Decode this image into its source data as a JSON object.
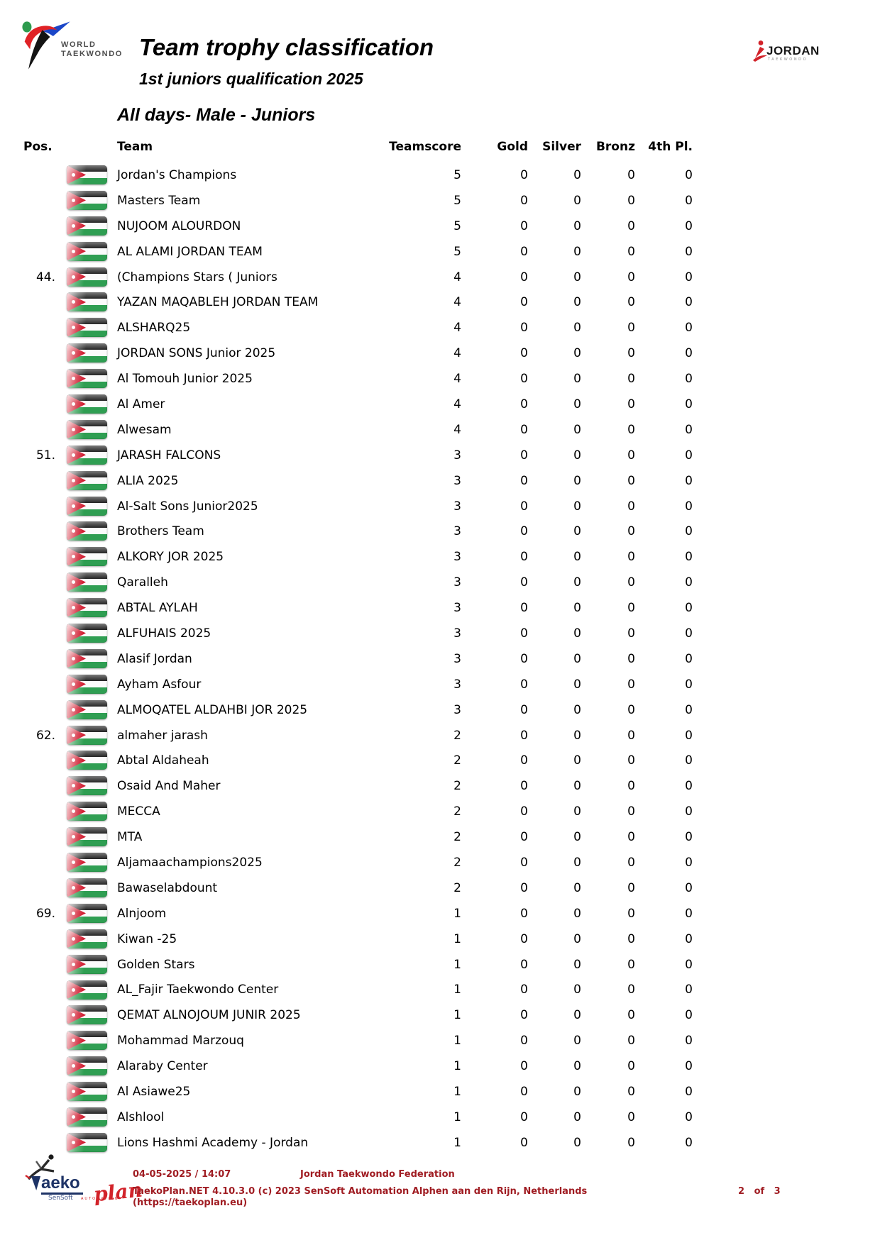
{
  "header": {
    "org_line1": "WORLD",
    "org_line2": "TAEKWONDO",
    "title": "Team trophy classification",
    "subtitle": "1st juniors qualification 2025",
    "right_logo_name": "JORDAN",
    "right_logo_sub": "TAEKWONDO"
  },
  "section_title": "All days- Male - Juniors",
  "table": {
    "columns": {
      "pos": "Pos.",
      "team": "Team",
      "score": "Teamscore",
      "gold": "Gold",
      "silver": "Silver",
      "bronze": "Bronz",
      "fourth": "4th Pl."
    },
    "flag_icon": "jordan-flag-icon",
    "rows": [
      {
        "pos": "",
        "team": "Jordan's  Champions",
        "score": "5",
        "gold": "0",
        "silver": "0",
        "bronze": "0",
        "fourth": "0"
      },
      {
        "pos": "",
        "team": "Masters Team",
        "score": "5",
        "gold": "0",
        "silver": "0",
        "bronze": "0",
        "fourth": "0"
      },
      {
        "pos": "",
        "team": "NUJOOM ALOURDON",
        "score": "5",
        "gold": "0",
        "silver": "0",
        "bronze": "0",
        "fourth": "0"
      },
      {
        "pos": "",
        "team": "AL ALAMI JORDAN TEAM",
        "score": "5",
        "gold": "0",
        "silver": "0",
        "bronze": "0",
        "fourth": "0"
      },
      {
        "pos": "44.",
        "team": "(Champions Stars ( Juniors",
        "score": "4",
        "gold": "0",
        "silver": "0",
        "bronze": "0",
        "fourth": "0"
      },
      {
        "pos": "",
        "team": "YAZAN MAQABLEH JORDAN TEAM",
        "score": "4",
        "gold": "0",
        "silver": "0",
        "bronze": "0",
        "fourth": "0"
      },
      {
        "pos": "",
        "team": "ALSHARQ25",
        "score": "4",
        "gold": "0",
        "silver": "0",
        "bronze": "0",
        "fourth": "0"
      },
      {
        "pos": "",
        "team": "JORDAN SONS Junior 2025",
        "score": "4",
        "gold": "0",
        "silver": "0",
        "bronze": "0",
        "fourth": "0"
      },
      {
        "pos": "",
        "team": "Al Tomouh  Junior 2025",
        "score": "4",
        "gold": "0",
        "silver": "0",
        "bronze": "0",
        "fourth": "0"
      },
      {
        "pos": "",
        "team": "Al Amer",
        "score": "4",
        "gold": "0",
        "silver": "0",
        "bronze": "0",
        "fourth": "0"
      },
      {
        "pos": "",
        "team": "Alwesam",
        "score": "4",
        "gold": "0",
        "silver": "0",
        "bronze": "0",
        "fourth": "0"
      },
      {
        "pos": "51.",
        "team": "JARASH FALCONS",
        "score": "3",
        "gold": "0",
        "silver": "0",
        "bronze": "0",
        "fourth": "0"
      },
      {
        "pos": "",
        "team": "ALIA 2025",
        "score": "3",
        "gold": "0",
        "silver": "0",
        "bronze": "0",
        "fourth": "0"
      },
      {
        "pos": "",
        "team": "Al-Salt Sons Junior2025",
        "score": "3",
        "gold": "0",
        "silver": "0",
        "bronze": "0",
        "fourth": "0"
      },
      {
        "pos": "",
        "team": "Brothers Team",
        "score": "3",
        "gold": "0",
        "silver": "0",
        "bronze": "0",
        "fourth": "0"
      },
      {
        "pos": "",
        "team": "ALKORY JOR 2025",
        "score": "3",
        "gold": "0",
        "silver": "0",
        "bronze": "0",
        "fourth": "0"
      },
      {
        "pos": "",
        "team": "Qaralleh",
        "score": "3",
        "gold": "0",
        "silver": "0",
        "bronze": "0",
        "fourth": "0"
      },
      {
        "pos": "",
        "team": "ABTAL AYLAH",
        "score": "3",
        "gold": "0",
        "silver": "0",
        "bronze": "0",
        "fourth": "0"
      },
      {
        "pos": "",
        "team": "ALFUHAIS 2025",
        "score": "3",
        "gold": "0",
        "silver": "0",
        "bronze": "0",
        "fourth": "0"
      },
      {
        "pos": "",
        "team": "Alasif Jordan",
        "score": "3",
        "gold": "0",
        "silver": "0",
        "bronze": "0",
        "fourth": "0"
      },
      {
        "pos": "",
        "team": "Ayham Asfour",
        "score": "3",
        "gold": "0",
        "silver": "0",
        "bronze": "0",
        "fourth": "0"
      },
      {
        "pos": "",
        "team": "ALMOQATEL ALDAHBI JOR 2025",
        "score": "3",
        "gold": "0",
        "silver": "0",
        "bronze": "0",
        "fourth": "0"
      },
      {
        "pos": "62.",
        "team": "almaher jarash",
        "score": "2",
        "gold": "0",
        "silver": "0",
        "bronze": "0",
        "fourth": "0"
      },
      {
        "pos": "",
        "team": "Abtal Aldaheah",
        "score": "2",
        "gold": "0",
        "silver": "0",
        "bronze": "0",
        "fourth": "0"
      },
      {
        "pos": "",
        "team": "Osaid And Maher",
        "score": "2",
        "gold": "0",
        "silver": "0",
        "bronze": "0",
        "fourth": "0"
      },
      {
        "pos": "",
        "team": "MECCA",
        "score": "2",
        "gold": "0",
        "silver": "0",
        "bronze": "0",
        "fourth": "0"
      },
      {
        "pos": "",
        "team": "MTA",
        "score": "2",
        "gold": "0",
        "silver": "0",
        "bronze": "0",
        "fourth": "0"
      },
      {
        "pos": "",
        "team": "Aljamaachampions2025",
        "score": "2",
        "gold": "0",
        "silver": "0",
        "bronze": "0",
        "fourth": "0"
      },
      {
        "pos": "",
        "team": "Bawaselabdount",
        "score": "2",
        "gold": "0",
        "silver": "0",
        "bronze": "0",
        "fourth": "0"
      },
      {
        "pos": "69.",
        "team": "Alnjoom",
        "score": "1",
        "gold": "0",
        "silver": "0",
        "bronze": "0",
        "fourth": "0"
      },
      {
        "pos": "",
        "team": "Kiwan  -25",
        "score": "1",
        "gold": "0",
        "silver": "0",
        "bronze": "0",
        "fourth": "0"
      },
      {
        "pos": "",
        "team": "Golden Stars",
        "score": "1",
        "gold": "0",
        "silver": "0",
        "bronze": "0",
        "fourth": "0"
      },
      {
        "pos": "",
        "team": "AL_Fajir Taekwondo Center",
        "score": "1",
        "gold": "0",
        "silver": "0",
        "bronze": "0",
        "fourth": "0"
      },
      {
        "pos": "",
        "team": "QEMAT ALNOJOUM JUNIR 2025",
        "score": "1",
        "gold": "0",
        "silver": "0",
        "bronze": "0",
        "fourth": "0"
      },
      {
        "pos": "",
        "team": "Mohammad Marzouq",
        "score": "1",
        "gold": "0",
        "silver": "0",
        "bronze": "0",
        "fourth": "0"
      },
      {
        "pos": "",
        "team": "Alaraby Center",
        "score": "1",
        "gold": "0",
        "silver": "0",
        "bronze": "0",
        "fourth": "0"
      },
      {
        "pos": "",
        "team": "Al Asiawe25",
        "score": "1",
        "gold": "0",
        "silver": "0",
        "bronze": "0",
        "fourth": "0"
      },
      {
        "pos": "",
        "team": "Alshlool",
        "score": "1",
        "gold": "0",
        "silver": "0",
        "bronze": "0",
        "fourth": "0"
      },
      {
        "pos": "",
        "team": "Lions Hashmi Academy - Jordan",
        "score": "1",
        "gold": "0",
        "silver": "0",
        "bronze": "0",
        "fourth": "0"
      }
    ]
  },
  "footer": {
    "datetime": "04-05-2025 / 14:07",
    "federation": "Jordan Taekwondo Federation",
    "app_line": "TaekoPlan.NET 4.10.3.0 (c) 2023 SenSoft Automation Alphen aan den Rijn, Netherlands",
    "url_line": "(https://taekoplan.eu)",
    "page": "2 of 3",
    "logo": {
      "aeko": "aeko",
      "plan": "plan",
      "sensoft": "SenSoft",
      "automation": "AUTOMATION"
    }
  },
  "colors": {
    "flag_red": "#CE1126",
    "flag_green": "#2F9E52",
    "footer_red": "#A01D23",
    "taekoplan_blue": "#1E3366",
    "taekoplan_red": "#D2232A"
  }
}
